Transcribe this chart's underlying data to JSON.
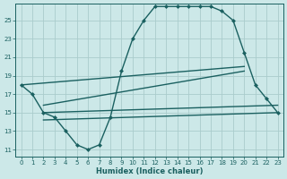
{
  "xlabel": "Humidex (Indice chaleur)",
  "bg_color": "#cce8e8",
  "grid_color": "#aacccc",
  "line_color": "#1a6060",
  "xlim": [
    -0.5,
    23.5
  ],
  "ylim": [
    10.2,
    26.8
  ],
  "xticks": [
    0,
    1,
    2,
    3,
    4,
    5,
    6,
    7,
    8,
    9,
    10,
    11,
    12,
    13,
    14,
    15,
    16,
    17,
    18,
    19,
    20,
    21,
    22,
    23
  ],
  "yticks": [
    11,
    13,
    15,
    17,
    19,
    21,
    23,
    25
  ],
  "main_line_x": [
    0,
    1,
    2,
    3,
    4,
    5,
    6,
    7,
    8,
    9,
    10,
    11,
    12,
    13,
    14,
    15,
    16,
    17,
    18,
    19,
    20,
    21,
    22,
    23
  ],
  "main_line_y": [
    18.0,
    17.0,
    15.0,
    14.5,
    13.0,
    11.5,
    11.0,
    11.5,
    14.5,
    19.5,
    23.0,
    25.0,
    26.5,
    26.5,
    26.5,
    26.5,
    26.5,
    26.5,
    26.0,
    25.0,
    21.5,
    18.0,
    16.5,
    15.0
  ],
  "diag_line1_x": [
    0,
    20
  ],
  "diag_line1_y": [
    18.0,
    20.0
  ],
  "diag_line2_x": [
    2,
    20
  ],
  "diag_line2_y": [
    15.8,
    19.5
  ],
  "diag_line3_x": [
    2,
    23
  ],
  "diag_line3_y": [
    15.0,
    15.8
  ],
  "diag_line4_x": [
    2,
    23
  ],
  "diag_line4_y": [
    14.2,
    15.0
  ],
  "markersize": 2.5,
  "linewidth": 1.0,
  "tick_fontsize": 5.0,
  "xlabel_fontsize": 6.0
}
